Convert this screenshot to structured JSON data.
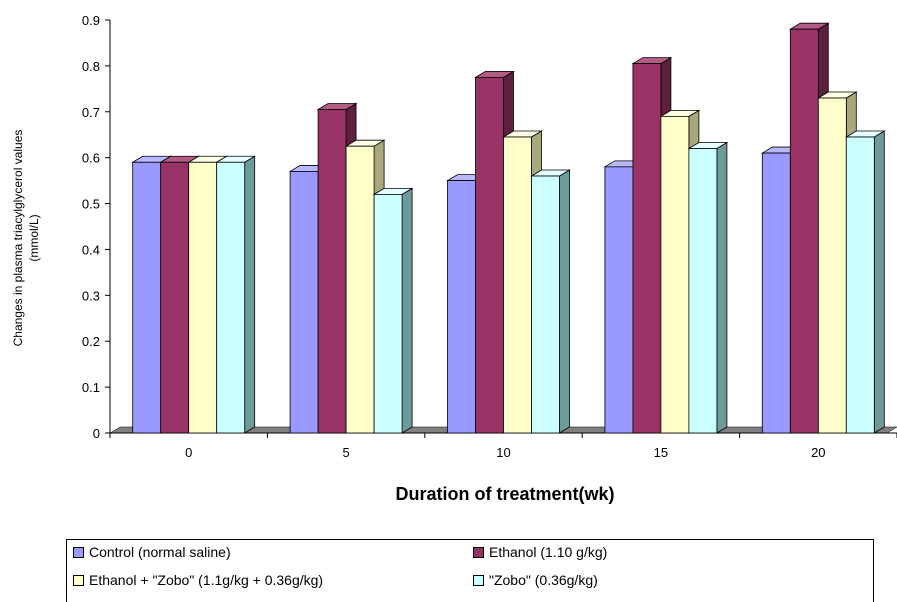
{
  "chart_data": {
    "type": "bar",
    "categories": [
      "0",
      "5",
      "10",
      "15",
      "20"
    ],
    "series": [
      {
        "name": "Control (normal saline)",
        "values": [
          0.59,
          0.57,
          0.55,
          0.58,
          0.61
        ],
        "color": "#9999ff",
        "side": "#5a5ab0",
        "top": "#b8b8ff"
      },
      {
        "name": "Ethanol (1.10 g/kg)",
        "values": [
          0.59,
          0.705,
          0.775,
          0.805,
          0.88
        ],
        "color": "#993366",
        "side": "#5c1f3d",
        "top": "#b35c85"
      },
      {
        "name": "Ethanol + \"Zobo\" (1.1g/kg + 0.36g/kg)",
        "values": [
          0.59,
          0.625,
          0.645,
          0.69,
          0.73
        ],
        "color": "#ffffcc",
        "side": "#a8a87a",
        "top": "#ffffe6"
      },
      {
        "name": "\"Zobo\" (0.36g/kg)",
        "values": [
          0.59,
          0.52,
          0.56,
          0.62,
          0.645
        ],
        "color": "#ccffff",
        "side": "#6f9a9a",
        "top": "#e6ffff"
      }
    ],
    "yticks": [
      "0",
      "0.1",
      "0.2",
      "0.3",
      "0.4",
      "0.5",
      "0.6",
      "0.7",
      "0.8",
      "0.9"
    ],
    "ylim": [
      0,
      0.9
    ],
    "xlabel": "Duration of treatment(wk)",
    "ylabel": "Changes in plasma triacylglycerol values (mmol/L)",
    "legend_position": "bottom"
  }
}
